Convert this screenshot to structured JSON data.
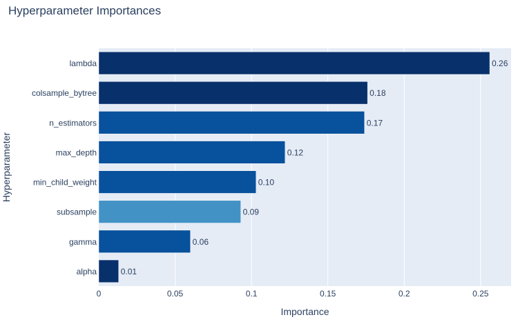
{
  "chart_data": {
    "type": "bar",
    "orientation": "horizontal",
    "title": "Hyperparameter Importances",
    "xlabel": "Importance",
    "ylabel": "Hyperparameter",
    "xlim": [
      0,
      0.27
    ],
    "grid": true,
    "x_ticks": [
      0,
      0.05,
      0.1,
      0.15,
      0.2,
      0.25
    ],
    "x_tick_labels": [
      "0",
      "0.05",
      "0.1",
      "0.15",
      "0.2",
      "0.25"
    ],
    "categories": [
      "alpha",
      "gamma",
      "subsample",
      "min_child_weight",
      "max_depth",
      "n_estimators",
      "colsample_bytree",
      "lambda"
    ],
    "values": [
      0.013,
      0.06,
      0.093,
      0.103,
      0.122,
      0.174,
      0.176,
      0.256
    ],
    "data_labels": [
      "0.01",
      "0.06",
      "0.09",
      "0.10",
      "0.12",
      "0.17",
      "0.18",
      "0.26"
    ],
    "bar_colors": [
      "#08306b",
      "#08519c",
      "#4292c6",
      "#08519c",
      "#08519c",
      "#08519c",
      "#08306b",
      "#08306b"
    ],
    "colors": {
      "plot_background": "#e5ecf6",
      "grid": "#ffffff",
      "text": "#2a3f5f"
    }
  }
}
